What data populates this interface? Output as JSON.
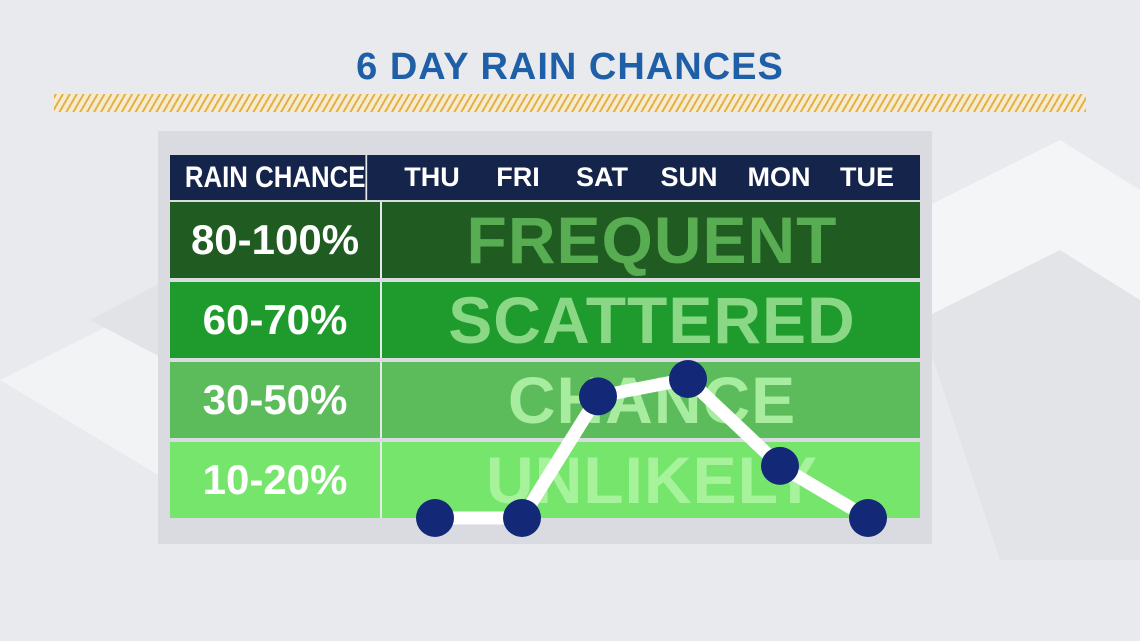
{
  "title": "6 DAY RAIN CHANCES",
  "colors": {
    "title": "#1f5fa8",
    "header_bg": "#14244b",
    "row_frequent": "#205b22",
    "row_scattered": "#1f9b2d",
    "row_chance": "#5cbb5a",
    "row_unlikely": "#76e56c",
    "point": "#142878",
    "line": "#ffffff"
  },
  "table": {
    "header_left": "RAIN CHANCE",
    "days": [
      "THU",
      "FRI",
      "SAT",
      "SUN",
      "MON",
      "TUE"
    ],
    "rows": [
      {
        "range": "80-100%",
        "label": "FREQUENT"
      },
      {
        "range": "60-70%",
        "label": "SCATTERED"
      },
      {
        "range": "30-50%",
        "label": "CHANCE"
      },
      {
        "range": "10-20%",
        "label": "UNLIKELY"
      }
    ]
  },
  "chart_data": {
    "type": "line",
    "title": "6 DAY RAIN CHANCES",
    "categories": [
      "THU",
      "FRI",
      "SAT",
      "SUN",
      "MON",
      "TUE"
    ],
    "values": [
      10,
      10,
      45,
      50,
      25,
      10
    ],
    "ylim": [
      0,
      100
    ],
    "bands": [
      {
        "range": "80-100%",
        "label": "FREQUENT"
      },
      {
        "range": "60-70%",
        "label": "SCATTERED"
      },
      {
        "range": "30-50%",
        "label": "CHANCE"
      },
      {
        "range": "10-20%",
        "label": "UNLIKELY"
      }
    ],
    "grid": false
  }
}
